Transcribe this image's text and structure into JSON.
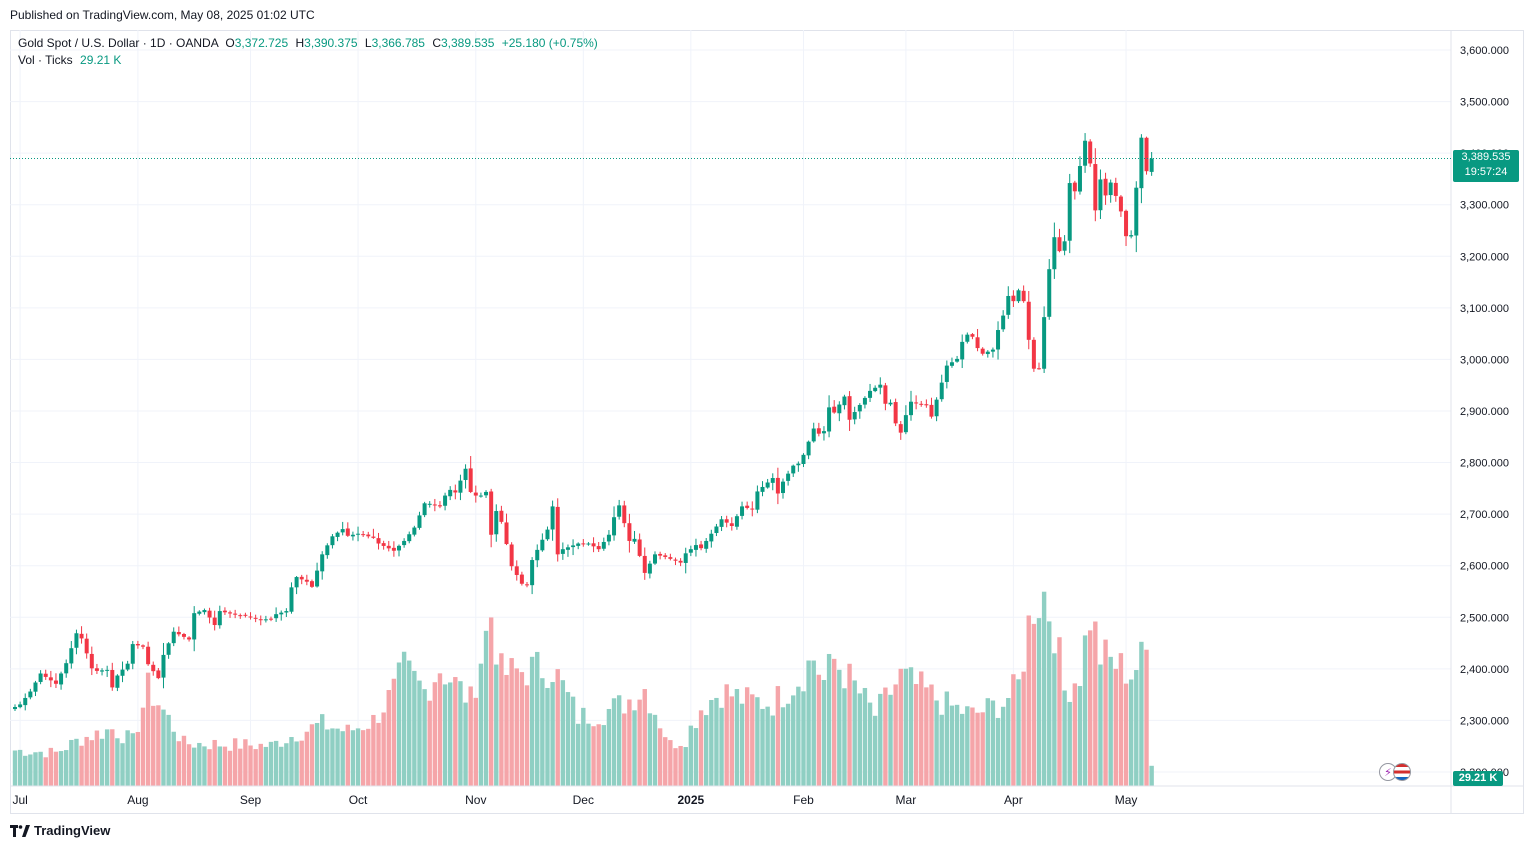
{
  "header": {
    "published": "Published on TradingView.com, May 08, 2025 01:02 UTC"
  },
  "legend": {
    "symbol": "Gold Spot / U.S. Dollar · 1D · OANDA",
    "o_label": "O",
    "o_value": "3,372.725",
    "h_label": "H",
    "h_value": "3,390.375",
    "l_label": "L",
    "l_value": "3,366.785",
    "c_label": "C",
    "c_value": "3,389.535",
    "change": "+25.180 (+0.75%)",
    "volume_label": "Vol · Ticks",
    "volume_value": "29.21 K"
  },
  "price_tag": {
    "price": "3,389.535",
    "countdown": "19:57:24"
  },
  "volume_tag": "29.21 K",
  "footer": {
    "brand": "TradingView"
  },
  "colors": {
    "up": "#089981",
    "down": "#f23645",
    "vol_up": "#8fcfc3",
    "vol_down": "#f5a5a9",
    "grid": "#f0f3fa"
  },
  "chart_data": {
    "type": "candlestick",
    "title": "Gold Spot / U.S. Dollar · 1D · OANDA",
    "ylim": [
      2200,
      3640
    ],
    "y_ticks": [
      "3,600.000",
      "3,500.000",
      "3,400.000",
      "3,300.000",
      "3,200.000",
      "3,100.000",
      "3,000.000",
      "2,900.000",
      "2,800.000",
      "2,700.000",
      "2,600.000",
      "2,500.000",
      "2,400.000",
      "2,300.000",
      "2,200.000"
    ],
    "x_labels": [
      "Jul",
      "Aug",
      "Sep",
      "Oct",
      "Nov",
      "Dec",
      "2025",
      "Feb",
      "Mar",
      "Apr",
      "May"
    ],
    "last_price": 3389.535,
    "anchors": [
      [
        "2024-06-28",
        2326
      ],
      [
        "2024-07-01",
        2331
      ],
      [
        "2024-07-03",
        2356
      ],
      [
        "2024-07-05",
        2391
      ],
      [
        "2024-07-10",
        2371
      ],
      [
        "2024-07-12",
        2411
      ],
      [
        "2024-07-16",
        2469
      ],
      [
        "2024-07-17",
        2459
      ],
      [
        "2024-07-19",
        2401
      ],
      [
        "2024-07-22",
        2396
      ],
      [
        "2024-07-24",
        2398
      ],
      [
        "2024-07-25",
        2364
      ],
      [
        "2024-07-26",
        2387
      ],
      [
        "2024-07-30",
        2410
      ],
      [
        "2024-07-31",
        2448
      ],
      [
        "2024-08-02",
        2443
      ],
      [
        "2024-08-05",
        2409
      ],
      [
        "2024-08-07",
        2382
      ],
      [
        "2024-08-08",
        2427
      ],
      [
        "2024-08-12",
        2472
      ],
      [
        "2024-08-15",
        2457
      ],
      [
        "2024-08-16",
        2508
      ],
      [
        "2024-08-20",
        2514
      ],
      [
        "2024-08-22",
        2485
      ],
      [
        "2024-08-23",
        2512
      ],
      [
        "2024-08-28",
        2505
      ],
      [
        "2024-08-30",
        2503
      ],
      [
        "2024-09-04",
        2495
      ],
      [
        "2024-09-06",
        2497
      ],
      [
        "2024-09-09",
        2506
      ],
      [
        "2024-09-11",
        2512
      ],
      [
        "2024-09-12",
        2558
      ],
      [
        "2024-09-13",
        2578
      ],
      [
        "2024-09-17",
        2569
      ],
      [
        "2024-09-18",
        2559
      ],
      [
        "2024-09-20",
        2622
      ],
      [
        "2024-09-24",
        2657
      ],
      [
        "2024-09-26",
        2671
      ],
      [
        "2024-09-27",
        2658
      ],
      [
        "2024-10-01",
        2662
      ],
      [
        "2024-10-03",
        2657
      ],
      [
        "2024-10-04",
        2654
      ],
      [
        "2024-10-07",
        2643
      ],
      [
        "2024-10-10",
        2629
      ],
      [
        "2024-10-14",
        2648
      ],
      [
        "2024-10-16",
        2674
      ],
      [
        "2024-10-18",
        2721
      ],
      [
        "2024-10-21",
        2720
      ],
      [
        "2024-10-23",
        2715
      ],
      [
        "2024-10-24",
        2736
      ],
      [
        "2024-10-25",
        2747
      ],
      [
        "2024-10-28",
        2742
      ],
      [
        "2024-10-30",
        2788
      ],
      [
        "2024-10-31",
        2743
      ],
      [
        "2024-11-01",
        2736
      ],
      [
        "2024-11-04",
        2736
      ],
      [
        "2024-11-05",
        2743
      ],
      [
        "2024-11-06",
        2660
      ],
      [
        "2024-11-07",
        2706
      ],
      [
        "2024-11-08",
        2685
      ],
      [
        "2024-11-12",
        2599
      ],
      [
        "2024-11-14",
        2565
      ],
      [
        "2024-11-15",
        2562
      ],
      [
        "2024-11-18",
        2611
      ],
      [
        "2024-11-21",
        2670
      ],
      [
        "2024-11-22",
        2715
      ],
      [
        "2024-11-25",
        2622
      ],
      [
        "2024-11-26",
        2632
      ],
      [
        "2024-11-29",
        2643
      ],
      [
        "2024-12-03",
        2643
      ],
      [
        "2024-12-05",
        2632
      ],
      [
        "2024-12-09",
        2660
      ],
      [
        "2024-12-10",
        2694
      ],
      [
        "2024-12-11",
        2717
      ],
      [
        "2024-12-13",
        2648
      ],
      [
        "2024-12-16",
        2652
      ],
      [
        "2024-12-18",
        2586
      ],
      [
        "2024-12-20",
        2622
      ],
      [
        "2024-12-24",
        2617
      ],
      [
        "2024-12-30",
        2606
      ],
      [
        "2024-12-31",
        2624
      ],
      [
        "2025-01-03",
        2640
      ],
      [
        "2025-01-06",
        2634
      ],
      [
        "2025-01-08",
        2662
      ],
      [
        "2025-01-10",
        2690
      ],
      [
        "2025-01-14",
        2677
      ],
      [
        "2025-01-16",
        2715
      ],
      [
        "2025-01-20",
        2709
      ],
      [
        "2025-01-21",
        2744
      ],
      [
        "2025-01-24",
        2770
      ],
      [
        "2025-01-27",
        2740
      ],
      [
        "2025-01-28",
        2763
      ],
      [
        "2025-01-30",
        2794
      ],
      [
        "2025-01-31",
        2798
      ],
      [
        "2025-02-03",
        2815
      ],
      [
        "2025-02-05",
        2866
      ],
      [
        "2025-02-06",
        2856
      ],
      [
        "2025-02-07",
        2861
      ],
      [
        "2025-02-10",
        2907
      ],
      [
        "2025-02-11",
        2897
      ],
      [
        "2025-02-13",
        2928
      ],
      [
        "2025-02-14",
        2883
      ],
      [
        "2025-02-17",
        2898
      ],
      [
        "2025-02-20",
        2939
      ],
      [
        "2025-02-24",
        2951
      ],
      [
        "2025-02-25",
        2914
      ],
      [
        "2025-02-26",
        2916
      ],
      [
        "2025-02-27",
        2876
      ],
      [
        "2025-02-28",
        2858
      ],
      [
        "2025-03-03",
        2892
      ],
      [
        "2025-03-04",
        2918
      ],
      [
        "2025-03-06",
        2912
      ],
      [
        "2025-03-07",
        2911
      ],
      [
        "2025-03-10",
        2889
      ],
      [
        "2025-03-13",
        2988
      ],
      [
        "2025-03-17",
        3001
      ],
      [
        "2025-03-18",
        3034
      ],
      [
        "2025-03-19",
        3048
      ],
      [
        "2025-03-20",
        3044
      ],
      [
        "2025-03-21",
        3022
      ],
      [
        "2025-03-24",
        3011
      ],
      [
        "2025-03-26",
        3019
      ],
      [
        "2025-03-27",
        3057
      ],
      [
        "2025-03-28",
        3085
      ],
      [
        "2025-03-31",
        3123
      ],
      [
        "2025-04-01",
        3113
      ],
      [
        "2025-04-02",
        3134
      ],
      [
        "2025-04-03",
        3113
      ],
      [
        "2025-04-04",
        3038
      ],
      [
        "2025-04-07",
        2982
      ],
      [
        "2025-04-08",
        2982
      ],
      [
        "2025-04-09",
        3082
      ],
      [
        "2025-04-10",
        3175
      ],
      [
        "2025-04-11",
        3237
      ],
      [
        "2025-04-14",
        3210
      ],
      [
        "2025-04-15",
        3229
      ],
      [
        "2025-04-16",
        3342
      ],
      [
        "2025-04-17",
        3326
      ],
      [
        "2025-04-21",
        3424
      ],
      [
        "2025-04-22",
        3380
      ],
      [
        "2025-04-23",
        3289
      ],
      [
        "2025-04-24",
        3349
      ],
      [
        "2025-04-25",
        3318
      ],
      [
        "2025-04-28",
        3343
      ],
      [
        "2025-04-29",
        3317
      ],
      [
        "2025-04-30",
        3287
      ],
      [
        "2025-05-01",
        3239
      ],
      [
        "2025-05-02",
        3241
      ],
      [
        "2025-05-05",
        3333
      ],
      [
        "2025-05-06",
        3430
      ],
      [
        "2025-05-07",
        3365
      ],
      [
        "2025-05-08",
        3389.535
      ]
    ],
    "volume_anchors": [
      [
        "2024-06-28",
        0.3
      ],
      [
        "2024-07-10",
        0.28
      ],
      [
        "2024-07-17",
        0.4
      ],
      [
        "2024-07-25",
        0.48
      ],
      [
        "2024-07-31",
        0.38
      ],
      [
        "2024-08-05",
        0.82
      ],
      [
        "2024-08-07",
        0.7
      ],
      [
        "2024-08-14",
        0.36
      ],
      [
        "2024-09-06",
        0.34
      ],
      [
        "2024-09-13",
        0.44
      ],
      [
        "2024-09-20",
        0.52
      ],
      [
        "2024-09-27",
        0.46
      ],
      [
        "2024-10-04",
        0.55
      ],
      [
        "2024-10-10",
        0.8
      ],
      [
        "2024-10-14",
        0.98
      ],
      [
        "2024-10-18",
        0.8
      ],
      [
        "2024-10-23",
        1.0
      ],
      [
        "2024-10-31",
        0.72
      ],
      [
        "2024-11-06",
        1.45
      ],
      [
        "2024-11-08",
        0.95
      ],
      [
        "2024-11-12",
        0.95
      ],
      [
        "2024-11-15",
        0.98
      ],
      [
        "2024-11-22",
        1.0
      ],
      [
        "2024-11-29",
        0.58
      ],
      [
        "2024-12-06",
        0.62
      ],
      [
        "2024-12-12",
        0.7
      ],
      [
        "2024-12-18",
        0.82
      ],
      [
        "2024-12-26",
        0.35
      ],
      [
        "2024-12-31",
        0.4
      ],
      [
        "2025-01-06",
        0.66
      ],
      [
        "2025-01-10",
        0.8
      ],
      [
        "2025-01-17",
        0.72
      ],
      [
        "2025-01-24",
        0.7
      ],
      [
        "2025-01-31",
        0.9
      ],
      [
        "2025-02-05",
        1.08
      ],
      [
        "2025-02-07",
        0.88
      ],
      [
        "2025-02-11",
        1.06
      ],
      [
        "2025-02-14",
        0.9
      ],
      [
        "2025-02-21",
        0.6
      ],
      [
        "2025-02-28",
        0.92
      ],
      [
        "2025-03-06",
        0.82
      ],
      [
        "2025-03-13",
        0.68
      ],
      [
        "2025-03-20",
        0.6
      ],
      [
        "2025-03-28",
        0.7
      ],
      [
        "2025-04-02",
        0.85
      ],
      [
        "2025-04-04",
        1.35
      ],
      [
        "2025-04-07",
        1.55
      ],
      [
        "2025-04-09",
        1.62
      ],
      [
        "2025-04-11",
        1.35
      ],
      [
        "2025-04-15",
        0.8
      ],
      [
        "2025-04-18",
        0.95
      ],
      [
        "2025-04-22",
        1.45
      ],
      [
        "2025-04-24",
        1.1
      ],
      [
        "2025-04-30",
        1.0
      ],
      [
        "2025-05-02",
        0.95
      ],
      [
        "2025-05-07",
        1.12
      ],
      [
        "2025-05-08",
        0.2
      ]
    ],
    "volume_ylim": [
      0,
      1.6
    ]
  }
}
